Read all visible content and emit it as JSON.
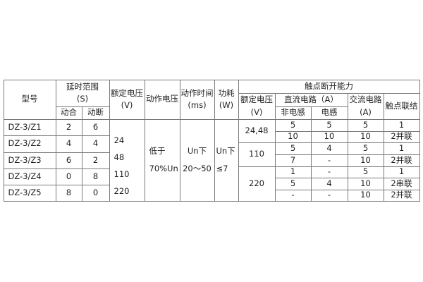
{
  "headers": {
    "model": "型号",
    "delay_range": "延时范围",
    "delay_unit": "(S)",
    "make": "动合",
    "break": "动断",
    "rated_voltage": "额定电压",
    "rated_voltage_unit": "(V)",
    "operating_voltage": "动作电压",
    "operating_time": "动作时间",
    "operating_time_unit": "(ms)",
    "power": "功耗",
    "power_unit": "(W)",
    "contact_capacity": "触点断开能力",
    "dc_circuit": "直流电路（A）",
    "non_inductive": "非电感",
    "inductive": "电感",
    "ac_circuit": "交流电路",
    "ac_unit": "(A)",
    "contact_connection": "触点联结"
  },
  "models": [
    {
      "model": "DZ-3/Z1",
      "make": "2",
      "break": "6"
    },
    {
      "model": "DZ-3/Z2",
      "make": "4",
      "break": "4"
    },
    {
      "model": "DZ-3/Z3",
      "make": "6",
      "break": "2"
    },
    {
      "model": "DZ-3/Z4",
      "make": "0",
      "break": "8"
    },
    {
      "model": "DZ-3/Z5",
      "make": "8",
      "break": "0"
    }
  ],
  "rated_voltages": [
    "24",
    "48",
    "110",
    "220"
  ],
  "operating_voltage": [
    "低于",
    "70%Un"
  ],
  "operating_time": [
    "Un下",
    "20～50"
  ],
  "power": [
    "Un下",
    "≤7"
  ],
  "contact_groups": [
    {
      "voltage": "24,48",
      "rows": [
        {
          "non_inductive": "5",
          "inductive": "5",
          "ac": "5",
          "connection": "1"
        },
        {
          "non_inductive": "10",
          "inductive": "10",
          "ac": "10",
          "connection": "2并联"
        }
      ]
    },
    {
      "voltage": "110",
      "rows": [
        {
          "non_inductive": "5",
          "inductive": "4",
          "ac": "5",
          "connection": "1"
        },
        {
          "non_inductive": "7",
          "inductive": "-",
          "ac": "10",
          "connection": "2并联"
        }
      ]
    },
    {
      "voltage": "220",
      "rows": [
        {
          "non_inductive": "1",
          "inductive": "-",
          "ac": "5",
          "connection": "1"
        },
        {
          "non_inductive": "5",
          "inductive": "4",
          "ac": "10",
          "connection": "2串联"
        },
        {
          "non_inductive": "-",
          "inductive": "-",
          "ac": "10",
          "connection": "2并联"
        }
      ]
    }
  ]
}
